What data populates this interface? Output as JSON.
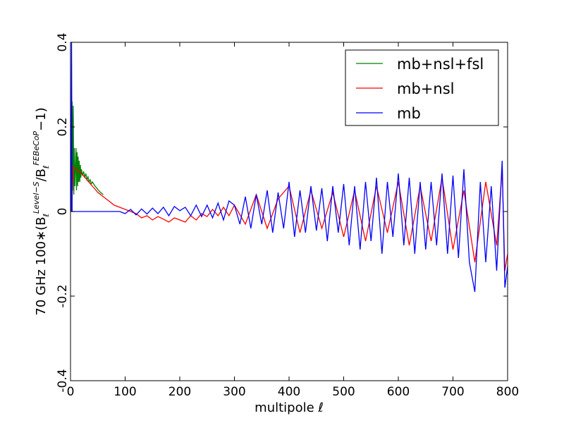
{
  "chart_data": {
    "type": "line",
    "title": "",
    "xlabel": "multipole ℓ",
    "ylabel": {
      "prefix": "70 GHz 100∗(B",
      "sub": "ℓ",
      "sup": "Level−S",
      "mid": "/B",
      "sub2": "ℓ",
      "sup2": "FEBeCoP",
      "suffix": "−1)"
    },
    "xlim": [
      0,
      800
    ],
    "ylim": [
      -0.4,
      0.4
    ],
    "xticks": [
      0,
      100,
      200,
      300,
      400,
      500,
      600,
      700,
      800
    ],
    "xtick_labels": [
      "0",
      "100",
      "200",
      "300",
      "400",
      "500",
      "600",
      "700",
      "800"
    ],
    "yticks": [
      -0.4,
      -0.2,
      0,
      0.2,
      0.4
    ],
    "ytick_labels": [
      "-0.4",
      "-0.2",
      "0",
      "0.2",
      "0.4"
    ],
    "grid": false,
    "legend_position": "top-right",
    "series": [
      {
        "name": "mb+nsl+fsl",
        "color": "#008000",
        "x": [
          2,
          3,
          4,
          5,
          6,
          7,
          8,
          9,
          10,
          11,
          12,
          13,
          14,
          15,
          16,
          17,
          18,
          19,
          20,
          22,
          24,
          26,
          28,
          30,
          32,
          34,
          36,
          38,
          40,
          45,
          50,
          55,
          60
        ],
        "y": [
          0.0,
          0.26,
          0.05,
          0.25,
          0.04,
          0.15,
          0.06,
          0.1,
          0.15,
          0.05,
          0.14,
          0.06,
          0.13,
          0.07,
          0.12,
          0.07,
          0.11,
          0.08,
          0.1,
          0.085,
          0.095,
          0.08,
          0.09,
          0.075,
          0.082,
          0.07,
          0.075,
          0.065,
          0.07,
          0.06,
          0.052,
          0.045,
          0.04
        ]
      },
      {
        "name": "mb+nsl",
        "color": "#ff0000",
        "x": [
          2,
          5,
          10,
          20,
          30,
          40,
          50,
          60,
          70,
          80,
          90,
          100,
          110,
          120,
          130,
          140,
          150,
          160,
          170,
          180,
          190,
          200,
          210,
          220,
          230,
          240,
          250,
          260,
          270,
          280,
          290,
          300,
          320,
          340,
          360,
          380,
          400,
          420,
          440,
          460,
          480,
          500,
          520,
          540,
          560,
          580,
          600,
          620,
          640,
          660,
          680,
          700,
          720,
          740,
          760,
          780,
          790,
          795,
          800
        ],
        "y": [
          0.0,
          0.105,
          0.1,
          0.09,
          0.075,
          0.06,
          0.045,
          0.035,
          0.025,
          0.015,
          0.01,
          0.005,
          0.0,
          -0.005,
          -0.015,
          -0.01,
          -0.02,
          -0.012,
          -0.018,
          -0.025,
          -0.015,
          -0.02,
          -0.025,
          -0.01,
          -0.02,
          -0.005,
          -0.012,
          0.005,
          -0.01,
          0.01,
          -0.01,
          0.015,
          -0.03,
          0.04,
          -0.04,
          0.03,
          0.06,
          -0.05,
          0.05,
          -0.04,
          0.045,
          -0.06,
          0.05,
          -0.07,
          0.06,
          -0.05,
          0.07,
          -0.08,
          0.06,
          -0.07,
          0.08,
          -0.09,
          0.05,
          -0.12,
          0.07,
          -0.08,
          0.1,
          -0.14,
          -0.1
        ]
      },
      {
        "name": "mb",
        "color": "#0000ff",
        "x": [
          1,
          2,
          3,
          5,
          10,
          20,
          30,
          40,
          50,
          60,
          70,
          80,
          90,
          100,
          110,
          120,
          130,
          140,
          150,
          160,
          170,
          180,
          190,
          200,
          210,
          220,
          230,
          240,
          250,
          260,
          270,
          280,
          290,
          300,
          310,
          320,
          330,
          340,
          350,
          360,
          370,
          380,
          390,
          400,
          410,
          420,
          430,
          440,
          450,
          460,
          470,
          480,
          490,
          500,
          510,
          520,
          530,
          540,
          550,
          560,
          570,
          580,
          590,
          600,
          610,
          620,
          630,
          640,
          650,
          660,
          670,
          680,
          690,
          700,
          710,
          720,
          730,
          740,
          750,
          760,
          770,
          780,
          790,
          795,
          800
        ],
        "y": [
          0.0,
          0.4,
          0.0,
          0.0,
          0.0,
          0.0,
          0.0,
          0.0,
          0.0,
          0.0,
          0.0,
          0.0,
          0.0,
          -0.005,
          0.005,
          -0.008,
          0.006,
          -0.006,
          0.008,
          -0.005,
          0.01,
          -0.01,
          0.012,
          0.002,
          0.01,
          -0.01,
          0.015,
          -0.012,
          0.015,
          -0.015,
          0.02,
          -0.02,
          0.025,
          0.015,
          -0.03,
          0.035,
          -0.04,
          0.04,
          -0.03,
          0.05,
          -0.05,
          0.045,
          -0.04,
          0.07,
          -0.06,
          0.05,
          -0.05,
          0.06,
          -0.045,
          0.055,
          -0.07,
          0.06,
          -0.05,
          0.065,
          -0.08,
          0.06,
          -0.09,
          0.07,
          -0.07,
          0.08,
          -0.1,
          0.07,
          -0.06,
          0.09,
          -0.08,
          0.08,
          -0.1,
          0.07,
          -0.09,
          0.07,
          -0.08,
          0.09,
          -0.1,
          0.085,
          -0.11,
          0.1,
          -0.12,
          -0.19,
          0.07,
          -0.12,
          0.06,
          -0.14,
          0.12,
          -0.18,
          -0.13
        ]
      }
    ]
  }
}
